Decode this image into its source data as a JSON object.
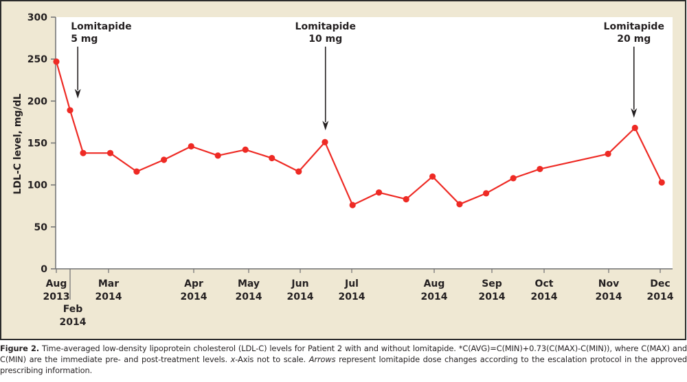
{
  "chart_data": {
    "type": "line",
    "title": "",
    "xlabel": "",
    "ylabel": "LDL-C level, mg/dL",
    "ylim": [
      0,
      300
    ],
    "yticks": [
      0,
      50,
      100,
      150,
      200,
      250,
      300
    ],
    "grid": false,
    "legend": "none",
    "x_axis_note": "x-axis not to scale; positions expressed as index along tick sequence",
    "xticks": [
      {
        "pos": 0,
        "line1": "Aug",
        "line2": "2013",
        "drop": false
      },
      {
        "pos": 1,
        "line1": "Feb",
        "line2": "2014",
        "drop": true
      },
      {
        "pos": 2,
        "line1": "Mar",
        "line2": "2014",
        "drop": false
      },
      {
        "pos": 3,
        "line1": "Apr",
        "line2": "2014",
        "drop": false
      },
      {
        "pos": 4,
        "line1": "May",
        "line2": "2014",
        "drop": false
      },
      {
        "pos": 5,
        "line1": "Jun",
        "line2": "2014",
        "drop": false
      },
      {
        "pos": 6,
        "line1": "Jul",
        "line2": "2014",
        "drop": false
      },
      {
        "pos": 7,
        "line1": "Aug",
        "line2": "2014",
        "drop": false
      },
      {
        "pos": 8,
        "line1": "Sep",
        "line2": "2014",
        "drop": false
      },
      {
        "pos": 9,
        "line1": "Oct",
        "line2": "2014",
        "drop": false
      },
      {
        "pos": 10,
        "line1": "Nov",
        "line2": "2014",
        "drop": false
      },
      {
        "pos": 11,
        "line1": "Dec",
        "line2": "2014",
        "drop": false
      }
    ],
    "series": [
      {
        "name": "LDL-C level",
        "color": "#ee2a24",
        "x": [
          0,
          1,
          1.34,
          2.02,
          2.33,
          2.65,
          2.97,
          3.44,
          3.94,
          4.45,
          4.97,
          5.48,
          6.01,
          6.33,
          6.66,
          6.98,
          7.44,
          7.9,
          8.41,
          8.92,
          9.99,
          10.51,
          11.03
        ],
        "values": [
          247,
          189,
          138,
          138,
          116,
          130,
          146,
          135,
          142,
          132,
          116,
          151,
          76,
          91,
          83,
          110,
          77,
          90,
          108,
          119,
          137,
          168,
          103
        ]
      }
    ],
    "annotations": [
      {
        "line1": "Lomitapide",
        "line2": "5 mg",
        "pos": 1.2,
        "arrow_to_value": 203,
        "align": "start"
      },
      {
        "line1": "Lomitapide",
        "line2": "10 mg",
        "pos": 5.49,
        "arrow_to_value": 165,
        "align": "middle"
      },
      {
        "line1": "Lomitapide",
        "line2": "20 mg",
        "pos": 10.49,
        "arrow_to_value": 180,
        "align": "middle"
      }
    ]
  },
  "caption": {
    "figure_label": "Figure 2.",
    "text_1": " Time-averaged low-density lipoprotein cholesterol (LDL-C) levels for Patient 2 with and without lomitapide. *C(AVG)=C(MIN)+0.73(C(MAX)-C(MIN)), where C(MAX) and C(MIN) are the immediate pre- and post-treatment levels. ",
    "italic_1": "x",
    "text_2": "-Axis not to scale. ",
    "italic_2": "Arrows",
    "text_3": " represent lomitapide dose changes according to the escalation protocol in the approved prescribing information."
  },
  "colors": {
    "frame_background": "#efe8d3",
    "plot_background": "#ffffff",
    "series": "#ee2a24",
    "text": "#231f20"
  }
}
